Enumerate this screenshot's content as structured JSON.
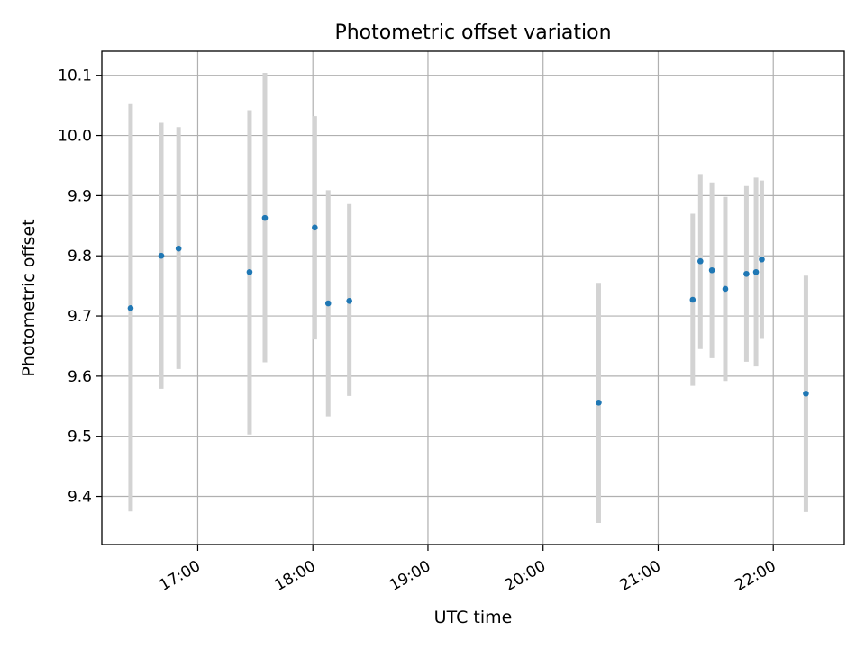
{
  "chart_data": {
    "type": "scatter",
    "title": "Photometric offset variation",
    "xlabel": "UTC time",
    "ylabel": "Photometric offset",
    "x_ticks": [
      "17:00",
      "18:00",
      "19:00",
      "20:00",
      "21:00",
      "22:00"
    ],
    "y_ticks": [
      "9.4",
      "9.5",
      "9.6",
      "9.7",
      "9.8",
      "9.9",
      "10.0",
      "10.1"
    ],
    "xlim": [
      "16:10",
      "22:37"
    ],
    "ylim": [
      9.32,
      10.14
    ],
    "grid": true,
    "colors": {
      "point": "#1f77b4",
      "errorbar": "#d3d3d3",
      "grid": "#b0b0b0"
    },
    "points": [
      {
        "x": "16:25",
        "y": 9.713,
        "yerr_low": 9.375,
        "yerr_high": 10.052
      },
      {
        "x": "16:41",
        "y": 9.8,
        "yerr_low": 9.579,
        "yerr_high": 10.021
      },
      {
        "x": "16:50",
        "y": 9.812,
        "yerr_low": 9.612,
        "yerr_high": 10.014
      },
      {
        "x": "17:27",
        "y": 9.773,
        "yerr_low": 9.503,
        "yerr_high": 10.042
      },
      {
        "x": "17:35",
        "y": 9.863,
        "yerr_low": 9.623,
        "yerr_high": 10.104
      },
      {
        "x": "18:01",
        "y": 9.847,
        "yerr_low": 9.661,
        "yerr_high": 10.032
      },
      {
        "x": "18:08",
        "y": 9.721,
        "yerr_low": 9.533,
        "yerr_high": 9.909
      },
      {
        "x": "18:19",
        "y": 9.725,
        "yerr_low": 9.567,
        "yerr_high": 9.886
      },
      {
        "x": "20:29",
        "y": 9.556,
        "yerr_low": 9.356,
        "yerr_high": 9.755
      },
      {
        "x": "21:18",
        "y": 9.727,
        "yerr_low": 9.584,
        "yerr_high": 9.87
      },
      {
        "x": "21:22",
        "y": 9.791,
        "yerr_low": 9.645,
        "yerr_high": 9.936
      },
      {
        "x": "21:28",
        "y": 9.776,
        "yerr_low": 9.63,
        "yerr_high": 9.922
      },
      {
        "x": "21:35",
        "y": 9.745,
        "yerr_low": 9.592,
        "yerr_high": 9.898
      },
      {
        "x": "21:46",
        "y": 9.77,
        "yerr_low": 9.624,
        "yerr_high": 9.916
      },
      {
        "x": "21:51",
        "y": 9.773,
        "yerr_low": 9.616,
        "yerr_high": 9.93
      },
      {
        "x": "21:54",
        "y": 9.794,
        "yerr_low": 9.662,
        "yerr_high": 9.925
      },
      {
        "x": "22:17",
        "y": 9.571,
        "yerr_low": 9.374,
        "yerr_high": 9.767
      }
    ]
  }
}
